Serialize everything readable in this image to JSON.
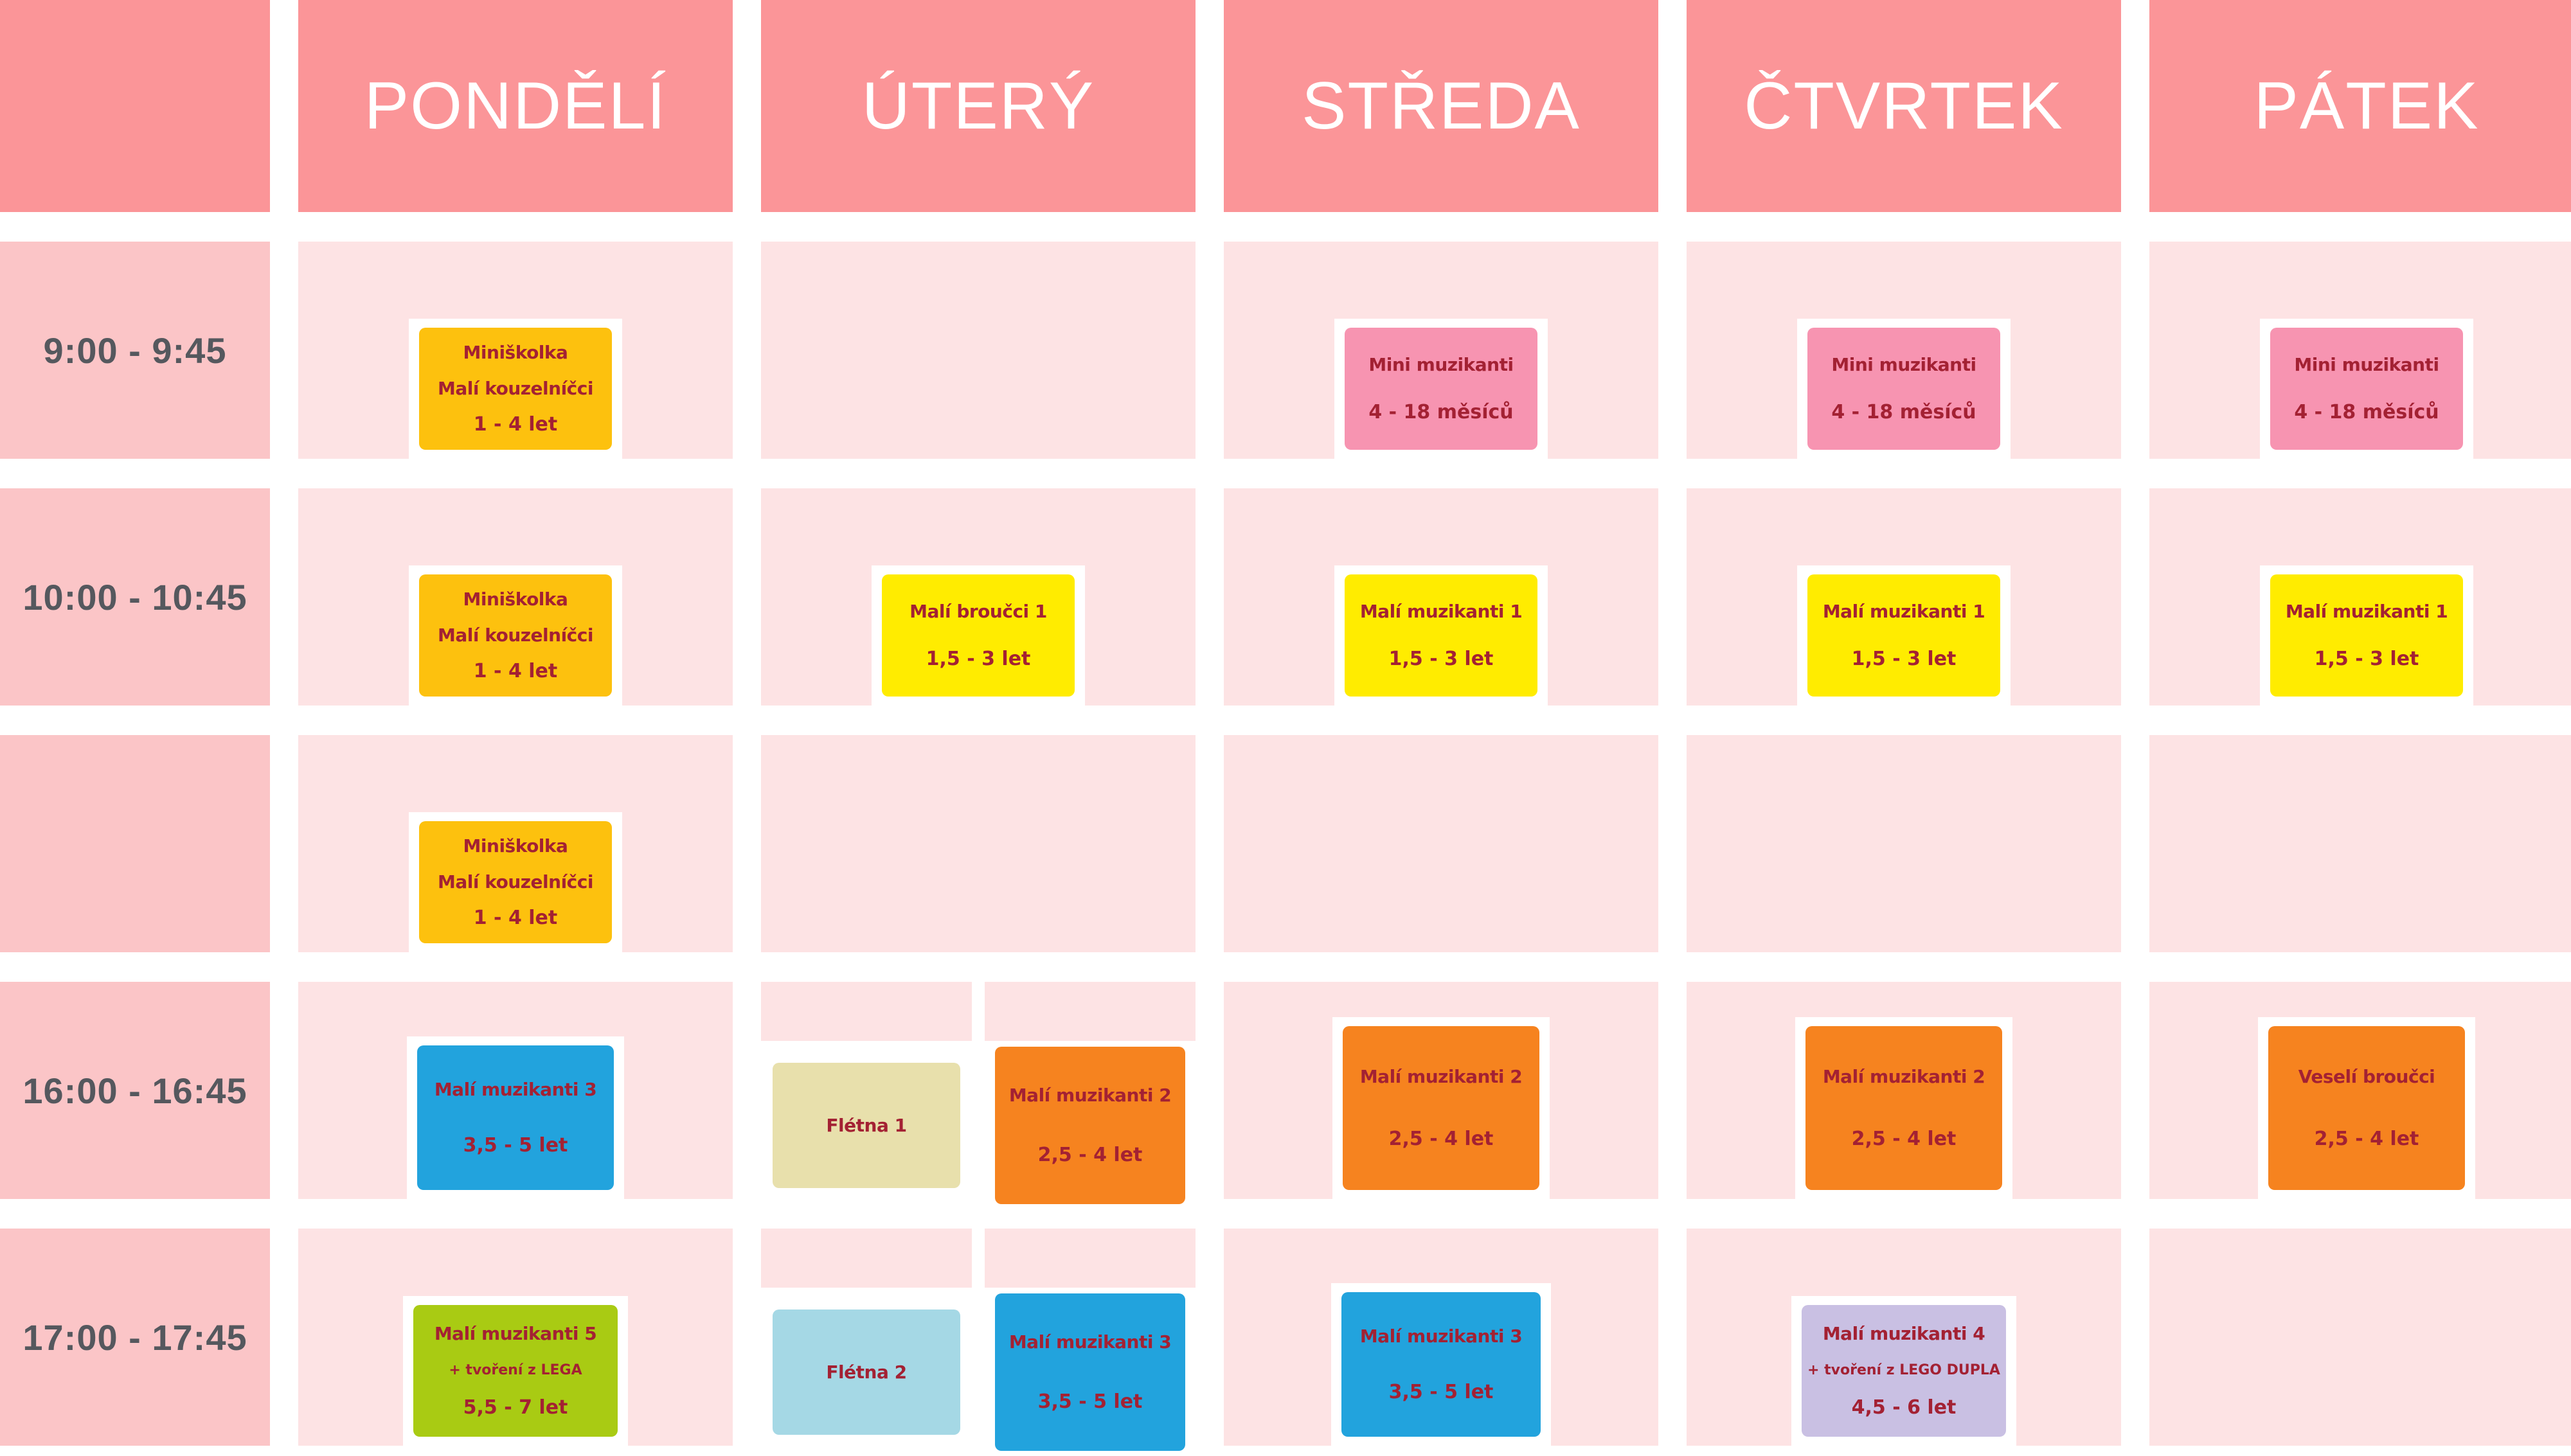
{
  "header": {
    "days": [
      "PONDĚLÍ",
      "ÚTERÝ",
      "STŘEDA",
      "ČTVRTEK",
      "PÁTEK"
    ]
  },
  "times": [
    "9:00 - 9:45",
    "10:00 - 10:45",
    "",
    "16:00 - 16:45",
    "17:00 - 17:45"
  ],
  "cards": {
    "miniskolka": {
      "title": "Miniškolka",
      "line2": "Malí kouzelníčci",
      "age": "1 - 4 let"
    },
    "mini_muzikanti": {
      "title": "Mini muzikanti",
      "age": "4 - 18 měsíců"
    },
    "mali_broucci1": {
      "title": "Malí broučci 1",
      "age": "1,5 - 3 let"
    },
    "mali_muzikanti1": {
      "title": "Malí muzikanti 1",
      "age": "1,5 - 3 let"
    },
    "mali_muzikanti2": {
      "title": "Malí muzikanti 2",
      "age": "2,5 - 4 let"
    },
    "mali_muzikanti3": {
      "title": "Malí muzikanti 3",
      "age": "3,5 - 5 let"
    },
    "mali_muzikanti4": {
      "title": "Malí muzikanti 4",
      "sub": "+ tvoření z LEGO DUPLA",
      "age": "4,5 - 6 let"
    },
    "mali_muzikanti5": {
      "title": "Malí muzikanti 5",
      "sub": "+ tvoření z LEGA",
      "age": "5,5 - 7 let"
    },
    "veseli_broucci": {
      "title": "Veselí broučci",
      "age": "2,5 - 4 let"
    },
    "fletna1": {
      "title": "Flétna 1"
    },
    "fletna2": {
      "title": "Flétna 2"
    }
  },
  "colors": {
    "header_bg": "#fb9598",
    "time_cell_bg": "#fbc5c7",
    "day_cell_bg": "#fde3e4",
    "gutter": "#ffffff",
    "card_text": "#a32133",
    "time_text": "#55585e",
    "card_amber": "#fdc10e",
    "card_pink": "#f794b1",
    "card_yellow": "#ffec00",
    "card_orange": "#f6831f",
    "card_blue": "#22a3dd",
    "card_light_blue": "#a5d8e5",
    "card_beige": "#e8e0ac",
    "card_green": "#a9cb13",
    "card_purple": "#c9c0e3"
  }
}
